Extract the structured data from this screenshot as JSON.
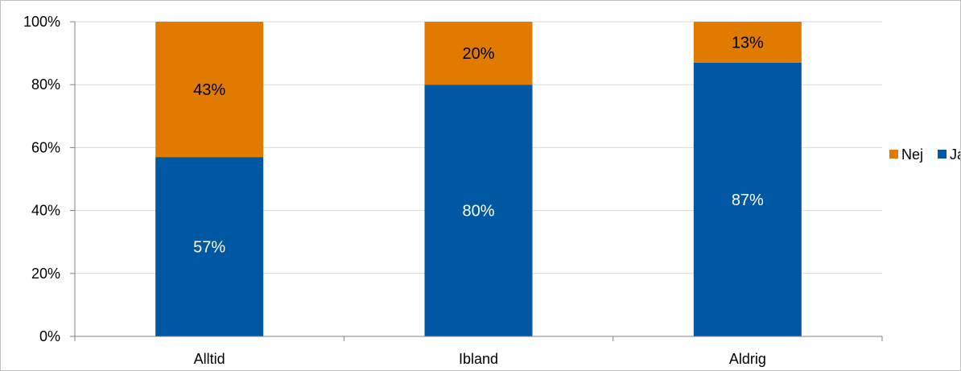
{
  "chart_data": {
    "type": "bar",
    "stacked": true,
    "categories": [
      "Alltid",
      "Ibland",
      "Aldrig"
    ],
    "series": [
      {
        "name": "Ja",
        "values": [
          57,
          80,
          87
        ],
        "labels": [
          "57%",
          "80%",
          "87%"
        ],
        "color": "#0058a3",
        "label_color": "#ffffff"
      },
      {
        "name": "Nej",
        "values": [
          43,
          20,
          13
        ],
        "labels": [
          "43%",
          "20%",
          "13%"
        ],
        "color": "#e07b00",
        "label_color": "#000000"
      }
    ],
    "ylim": [
      0,
      100
    ],
    "yticks": [
      0,
      20,
      40,
      60,
      80,
      100
    ],
    "ytick_labels": [
      "0%",
      "20%",
      "40%",
      "60%",
      "80%",
      "100%"
    ],
    "grid": true,
    "legend": {
      "position": "right",
      "entries": [
        {
          "name": "Nej",
          "color": "#e07b00"
        },
        {
          "name": "Ja",
          "color": "#0058a3"
        }
      ]
    },
    "colors": {
      "gridline": "#d9d9d9",
      "axis": "#808080"
    }
  }
}
